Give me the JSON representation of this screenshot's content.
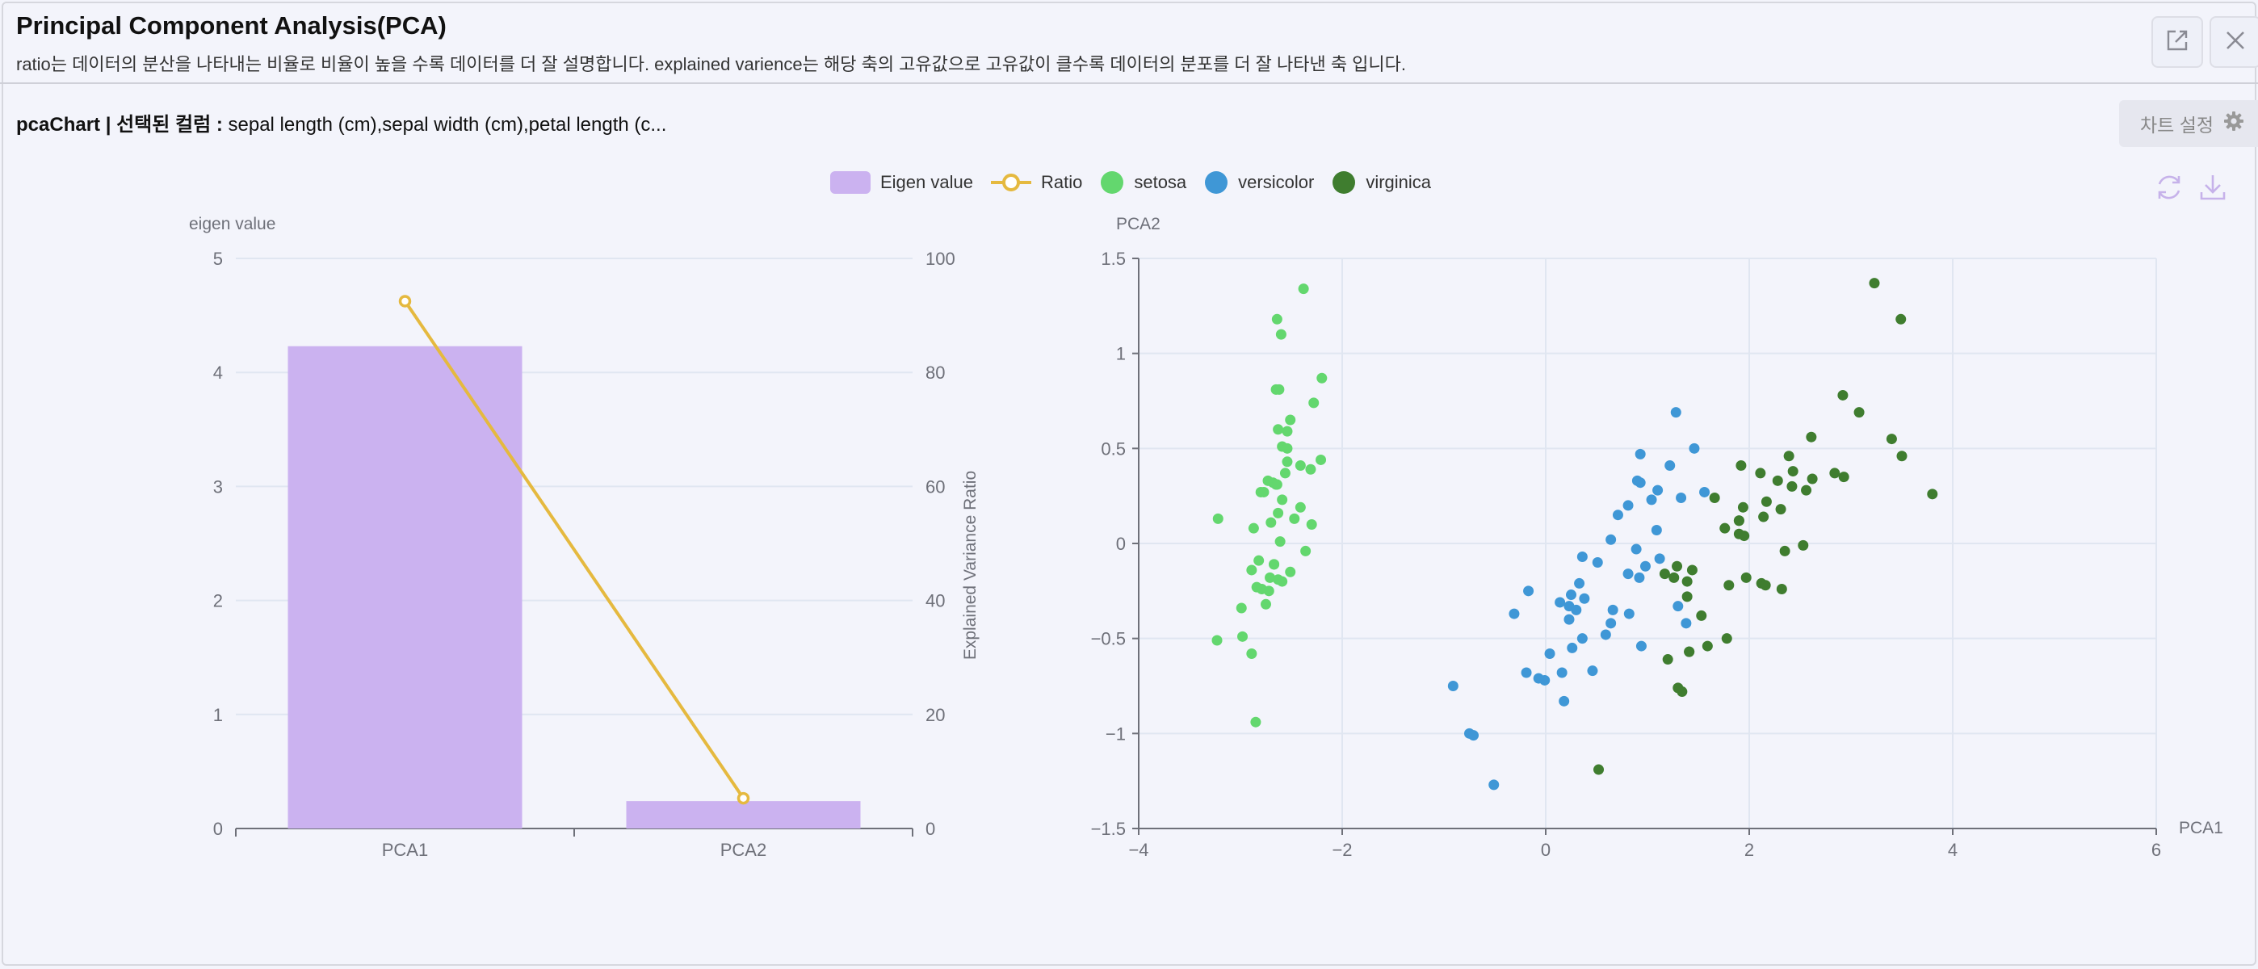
{
  "header": {
    "title": "Principal Component Analysis(PCA)",
    "description": "ratio는 데이터의 분산을 나타내는 비율로 비율이 높을 수록 데이터를 더 잘 설명합니다. explained varience는 해당 축의 고유값으로 고유값이 클수록 데이터의 분포를 더 잘 나타낸 축 입니다.",
    "open_icon": "external-link-icon",
    "close_icon": "close-icon"
  },
  "subheader": {
    "chart_name": "pcaChart",
    "separator": " | ",
    "selected_label": "선택된 컬럼 : ",
    "selected_columns": "sepal length (cm),sepal width (cm),petal length (c..."
  },
  "toolbar": {
    "settings_label": "차트 설정",
    "settings_icon": "gear-icon",
    "refresh_icon": "refresh-icon",
    "download_icon": "download-icon"
  },
  "legend": [
    {
      "label": "Eigen value",
      "color": "#cbb2f0",
      "shape": "rect"
    },
    {
      "label": "Ratio",
      "color": "#e5b93f",
      "shape": "line-circle"
    },
    {
      "label": "setosa",
      "color": "#63d76e",
      "shape": "circle"
    },
    {
      "label": "versicolor",
      "color": "#3f97d6",
      "shape": "circle"
    },
    {
      "label": "virginica",
      "color": "#3f7d2f",
      "shape": "circle"
    }
  ],
  "chart_data": [
    {
      "type": "bar",
      "categories": [
        "PCA1",
        "PCA2"
      ],
      "series": [
        {
          "name": "Eigen value",
          "values": [
            4.23,
            0.24
          ],
          "color": "#cbb2f0"
        },
        {
          "name": "Ratio",
          "type": "line",
          "axis": "right",
          "values": [
            92.5,
            5.3
          ],
          "color": "#e5b93f"
        }
      ],
      "ylabel": "eigen value",
      "ylabel_right": "Explained Variance Ratio",
      "ylim": [
        0,
        5
      ],
      "ylim_right": [
        0,
        100
      ],
      "yticks": [
        "0",
        "1",
        "2",
        "3",
        "4",
        "5"
      ],
      "yticks_right": [
        "0",
        "20",
        "40",
        "60",
        "80",
        "100"
      ],
      "grid": true
    },
    {
      "type": "scatter",
      "xlabel": "PCA1",
      "ylabel": "PCA2",
      "xlim": [
        -4,
        6
      ],
      "ylim": [
        -1.5,
        1.5
      ],
      "xticks": [
        "−4",
        "−2",
        "0",
        "2",
        "4",
        "6"
      ],
      "yticks": [
        "−1.5",
        "−1",
        "−0.5",
        "0",
        "0.5",
        "1",
        "1.5"
      ],
      "grid": true,
      "series": [
        {
          "name": "setosa",
          "color": "#63d76e",
          "points": [
            [
              -2.68,
              0.32
            ],
            [
              -2.71,
              -0.18
            ],
            [
              -2.89,
              -0.14
            ],
            [
              -2.75,
              -0.32
            ],
            [
              -2.73,
              0.33
            ],
            [
              -2.28,
              0.74
            ],
            [
              -2.82,
              -0.09
            ],
            [
              -2.63,
              0.16
            ],
            [
              -2.89,
              -0.58
            ],
            [
              -2.67,
              -0.11
            ],
            [
              -2.51,
              0.65
            ],
            [
              -2.61,
              0.01
            ],
            [
              -2.79,
              -0.24
            ],
            [
              -3.23,
              -0.51
            ],
            [
              -2.64,
              1.18
            ],
            [
              -2.38,
              1.34
            ],
            [
              -2.62,
              0.81
            ],
            [
              -2.65,
              0.31
            ],
            [
              -2.2,
              0.87
            ],
            [
              -2.59,
              0.51
            ],
            [
              -2.31,
              0.39
            ],
            [
              -2.54,
              0.43
            ],
            [
              -3.22,
              0.13
            ],
            [
              -2.3,
              0.1
            ],
            [
              -2.36,
              -0.04
            ],
            [
              -2.51,
              -0.15
            ],
            [
              -2.47,
              0.13
            ],
            [
              -2.56,
              0.37
            ],
            [
              -2.64,
              0.31
            ],
            [
              -2.63,
              -0.19
            ],
            [
              -2.59,
              -0.2
            ],
            [
              -2.41,
              0.41
            ],
            [
              -2.65,
              0.81
            ],
            [
              -2.6,
              1.1
            ],
            [
              -2.67,
              -0.11
            ],
            [
              -2.87,
              0.08
            ],
            [
              -2.63,
              0.6
            ],
            [
              -2.8,
              0.27
            ],
            [
              -2.98,
              -0.49
            ],
            [
              -2.59,
              0.23
            ],
            [
              -2.77,
              0.27
            ],
            [
              -2.85,
              -0.94
            ],
            [
              -2.99,
              -0.34
            ],
            [
              -2.41,
              0.19
            ],
            [
              -2.21,
              0.44
            ],
            [
              -2.72,
              -0.25
            ],
            [
              -2.54,
              0.5
            ],
            [
              -2.84,
              -0.23
            ],
            [
              -2.54,
              0.59
            ],
            [
              -2.7,
              0.11
            ]
          ]
        },
        {
          "name": "versicolor",
          "color": "#3f97d6",
          "points": [
            [
              1.28,
              0.69
            ],
            [
              0.93,
              0.32
            ],
            [
              1.46,
              0.5
            ],
            [
              0.18,
              -0.83
            ],
            [
              1.09,
              0.07
            ],
            [
              0.64,
              -0.42
            ],
            [
              1.1,
              0.28
            ],
            [
              -0.75,
              -1.0
            ],
            [
              1.04,
              0.23
            ],
            [
              -0.01,
              -0.72
            ],
            [
              -0.51,
              -1.27
            ],
            [
              0.51,
              -0.1
            ],
            [
              0.26,
              -0.55
            ],
            [
              0.98,
              -0.12
            ],
            [
              -0.17,
              -0.25
            ],
            [
              0.93,
              0.47
            ],
            [
              0.66,
              -0.35
            ],
            [
              0.23,
              -0.33
            ],
            [
              0.94,
              -0.54
            ],
            [
              0.04,
              -0.58
            ],
            [
              1.12,
              -0.08
            ],
            [
              0.36,
              -0.07
            ],
            [
              1.3,
              -0.33
            ],
            [
              0.92,
              -0.18
            ],
            [
              0.71,
              0.15
            ],
            [
              0.9,
              0.33
            ],
            [
              1.33,
              0.24
            ],
            [
              1.56,
              0.27
            ],
            [
              0.81,
              -0.16
            ],
            [
              -0.31,
              -0.37
            ],
            [
              -0.07,
              -0.71
            ],
            [
              -0.19,
              -0.68
            ],
            [
              0.14,
              -0.31
            ],
            [
              1.38,
              -0.42
            ],
            [
              0.59,
              -0.48
            ],
            [
              0.81,
              0.2
            ],
            [
              1.22,
              0.41
            ],
            [
              0.82,
              -0.37
            ],
            [
              0.25,
              -0.27
            ],
            [
              0.16,
              -0.68
            ],
            [
              0.46,
              -0.67
            ],
            [
              0.89,
              -0.03
            ],
            [
              0.23,
              -0.4
            ],
            [
              -0.71,
              -1.01
            ],
            [
              0.36,
              -0.5
            ],
            [
              0.33,
              -0.21
            ],
            [
              0.38,
              -0.29
            ],
            [
              0.64,
              0.02
            ],
            [
              -0.91,
              -0.75
            ],
            [
              0.3,
              -0.35
            ]
          ]
        },
        {
          "name": "virginica",
          "color": "#3f7d2f",
          "points": [
            [
              2.53,
              -0.01
            ],
            [
              1.41,
              -0.57
            ],
            [
              2.62,
              0.34
            ],
            [
              1.97,
              -0.18
            ],
            [
              2.35,
              -0.04
            ],
            [
              3.4,
              0.55
            ],
            [
              0.52,
              -1.19
            ],
            [
              2.93,
              0.35
            ],
            [
              2.32,
              -0.24
            ],
            [
              2.92,
              0.78
            ],
            [
              1.66,
              0.24
            ],
            [
              1.8,
              -0.22
            ],
            [
              2.17,
              0.22
            ],
            [
              1.34,
              -0.78
            ],
            [
              1.59,
              -0.54
            ],
            [
              1.9,
              0.12
            ],
            [
              1.95,
              0.04
            ],
            [
              3.49,
              1.18
            ],
            [
              3.8,
              0.26
            ],
            [
              1.3,
              -0.76
            ],
            [
              2.43,
              0.38
            ],
            [
              1.2,
              -0.61
            ],
            [
              3.5,
              0.46
            ],
            [
              1.39,
              -0.2
            ],
            [
              2.28,
              0.33
            ],
            [
              2.61,
              0.56
            ],
            [
              1.26,
              -0.18
            ],
            [
              1.29,
              -0.12
            ],
            [
              2.12,
              -0.21
            ],
            [
              2.39,
              0.46
            ],
            [
              2.84,
              0.37
            ],
            [
              3.23,
              1.37
            ],
            [
              2.16,
              -0.22
            ],
            [
              1.44,
              -0.14
            ],
            [
              1.78,
              -0.5
            ],
            [
              3.08,
              0.69
            ],
            [
              2.14,
              0.14
            ],
            [
              1.9,
              0.05
            ],
            [
              1.17,
              -0.16
            ],
            [
              2.11,
              0.37
            ],
            [
              2.31,
              0.18
            ],
            [
              1.92,
              0.41
            ],
            [
              1.41,
              -0.57
            ],
            [
              2.56,
              0.28
            ],
            [
              2.42,
              0.3
            ],
            [
              1.94,
              0.19
            ],
            [
              1.53,
              -0.38
            ],
            [
              1.76,
              0.08
            ],
            [
              1.9,
              0.12
            ],
            [
              1.39,
              -0.28
            ]
          ]
        }
      ]
    }
  ]
}
